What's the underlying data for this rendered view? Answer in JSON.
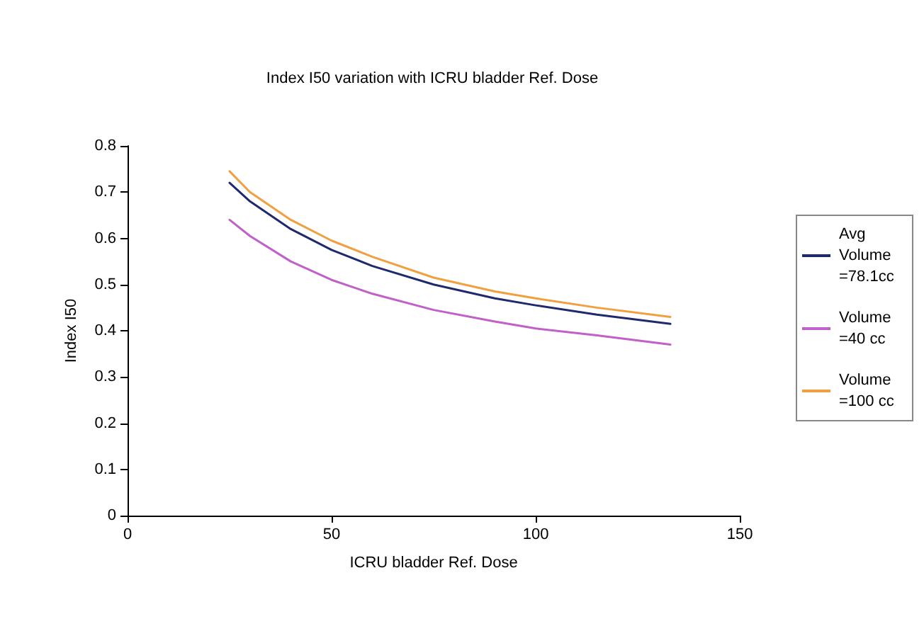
{
  "chart_data": {
    "type": "line",
    "title": "Index I50 variation with ICRU bladder Ref. Dose",
    "xlabel": "ICRU bladder Ref. Dose",
    "ylabel": "Index I50",
    "xlim": [
      0,
      150
    ],
    "xticks": [
      0,
      50,
      100,
      150
    ],
    "ylim": [
      0,
      0.8
    ],
    "yticks": [
      0,
      0.1,
      0.2,
      0.3,
      0.4,
      0.5,
      0.6,
      0.7,
      0.8
    ],
    "x": [
      25,
      30,
      40,
      50,
      60,
      75,
      90,
      100,
      115,
      133
    ],
    "series": [
      {
        "name": "Avg Volume =78.1cc",
        "color": "#1f2a6e",
        "values": [
          0.72,
          0.68,
          0.62,
          0.575,
          0.54,
          0.5,
          0.47,
          0.455,
          0.435,
          0.415
        ]
      },
      {
        "name": "Volume =40 cc",
        "color": "#c060c8",
        "values": [
          0.64,
          0.605,
          0.55,
          0.51,
          0.48,
          0.445,
          0.42,
          0.405,
          0.39,
          0.37
        ]
      },
      {
        "name": "Volume =100 cc",
        "color": "#f0a040",
        "values": [
          0.745,
          0.7,
          0.64,
          0.595,
          0.56,
          0.515,
          0.485,
          0.47,
          0.45,
          0.43
        ]
      }
    ],
    "legend": "right",
    "grid": false,
    "marker": "none",
    "line_style": "solid"
  }
}
